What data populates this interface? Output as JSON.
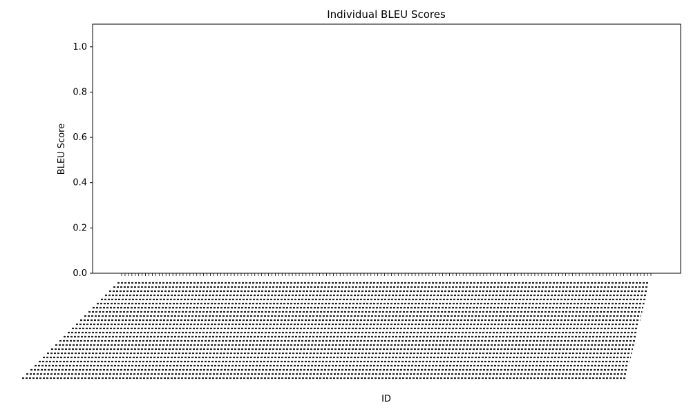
{
  "chart_data": {
    "type": "bar",
    "title": "Individual BLEU Scores",
    "xlabel": "ID",
    "ylabel": "BLEU Score",
    "ylim": [
      0,
      1.1
    ],
    "yticks": [
      "0.0",
      "0.2",
      "0.4",
      "0.6",
      "0.8",
      "1.0"
    ],
    "category_count": 156,
    "values_visible": "none (all bars at 0)",
    "xtick_label_style": "rotated ~45°, heavily overlapping, unreadable",
    "grid": false,
    "legend": "none"
  },
  "colors": {
    "axis": "#000000",
    "background": "#ffffff",
    "bar": "#1f77b4"
  }
}
